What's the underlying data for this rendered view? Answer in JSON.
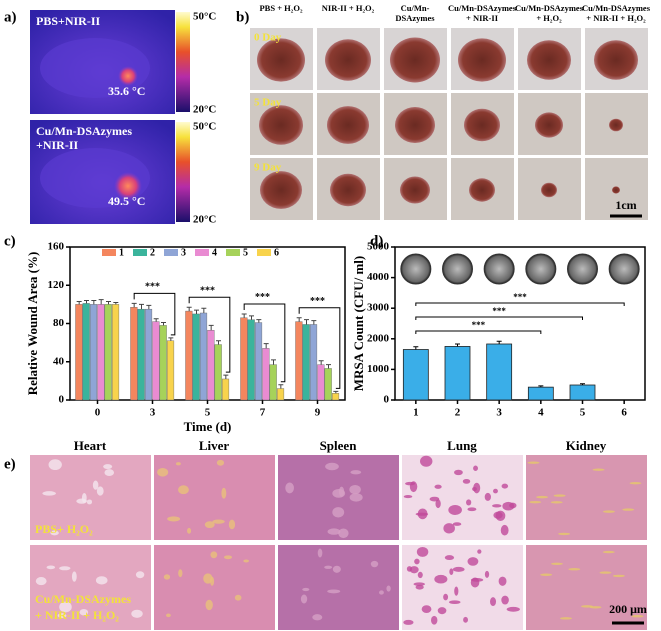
{
  "panel_a": {
    "label": "a)",
    "images": [
      {
        "title": [
          "PBS+NIR-II"
        ],
        "temperature": "35.6 °C",
        "scale_max": "50°C",
        "scale_min": "20°C"
      },
      {
        "title": [
          "Cu/Mn-DSAzymes",
          "+NIR-II"
        ],
        "temperature": "49.5 °C",
        "scale_max": "50°C",
        "scale_min": "20°C"
      }
    ]
  },
  "panel_b": {
    "label": "b)",
    "columns": [
      [
        "PBS + H₂O₂"
      ],
      [
        "NIR-II + H₂O₂"
      ],
      [
        "Cu/Mn-",
        "DSAzymes"
      ],
      [
        "Cu/Mn-DSAzymes",
        "+ NIR-II"
      ],
      [
        "Cu/Mn-DSAzymes",
        "+ H₂O₂"
      ],
      [
        "Cu/Mn-DSAzymes",
        "+ NIR-II + H₂O₂"
      ]
    ],
    "rows": [
      "0 Day",
      "5 Day",
      "9 Day"
    ],
    "scale_bar": "1cm"
  },
  "chart_data": [
    {
      "label": "c)",
      "type": "grouped-bar",
      "categories": [
        "0",
        "3",
        "5",
        "7",
        "9"
      ],
      "series": [
        {
          "name": "1",
          "color": "#f4865e",
          "values": [
            100,
            97,
            93,
            86,
            82
          ],
          "errors": [
            3,
            4,
            4,
            4,
            4
          ]
        },
        {
          "name": "2",
          "color": "#3bb49c",
          "values": [
            101,
            95,
            90,
            84,
            79
          ],
          "errors": [
            3,
            5,
            4,
            4,
            5
          ]
        },
        {
          "name": "3",
          "color": "#8fa5d6",
          "values": [
            100,
            95,
            91,
            81,
            79
          ],
          "errors": [
            4,
            4,
            5,
            3,
            4
          ]
        },
        {
          "name": "4",
          "color": "#e98bd2",
          "values": [
            100,
            82,
            73,
            54,
            37
          ],
          "errors": [
            5,
            3,
            5,
            5,
            4
          ]
        },
        {
          "name": "5",
          "color": "#a6d25a",
          "values": [
            100,
            78,
            58,
            37,
            33
          ],
          "errors": [
            3,
            3,
            4,
            5,
            4
          ]
        },
        {
          "name": "6",
          "color": "#f8d34c",
          "values": [
            100,
            62,
            22,
            12,
            7
          ],
          "errors": [
            2,
            3,
            4,
            4,
            2
          ]
        }
      ],
      "ylim": [
        0,
        160
      ],
      "yticks": [
        0,
        40,
        80,
        120,
        160
      ],
      "xlabel": "Time (d)",
      "ylabel": "Relative Wound Area (%)",
      "annotations": [
        "***",
        "***",
        "***",
        "***"
      ]
    },
    {
      "label": "d)",
      "type": "bar",
      "categories": [
        "1",
        "2",
        "3",
        "4",
        "5",
        "6"
      ],
      "values": [
        1650,
        1750,
        1830,
        420,
        490,
        0
      ],
      "errors": [
        90,
        80,
        90,
        40,
        40,
        0
      ],
      "color": "#3aaee8",
      "ylim": [
        0,
        5000
      ],
      "yticks": [
        0,
        1000,
        2000,
        3000,
        4000,
        5000
      ],
      "ylabel": "MRSA Count (CFU/ ml)",
      "annotations": [
        "***",
        "***",
        "***"
      ]
    }
  ],
  "panel_e": {
    "label": "e)",
    "columns": [
      "Heart",
      "Liver",
      "Spleen",
      "Lung",
      "Kidney"
    ],
    "rows": [
      [
        "PBS+ H₂O₂"
      ],
      [
        "Cu/Mn-DSAzymes",
        "+ NIR-II + H₂O₂"
      ]
    ],
    "scale_bar": "200 μm"
  }
}
